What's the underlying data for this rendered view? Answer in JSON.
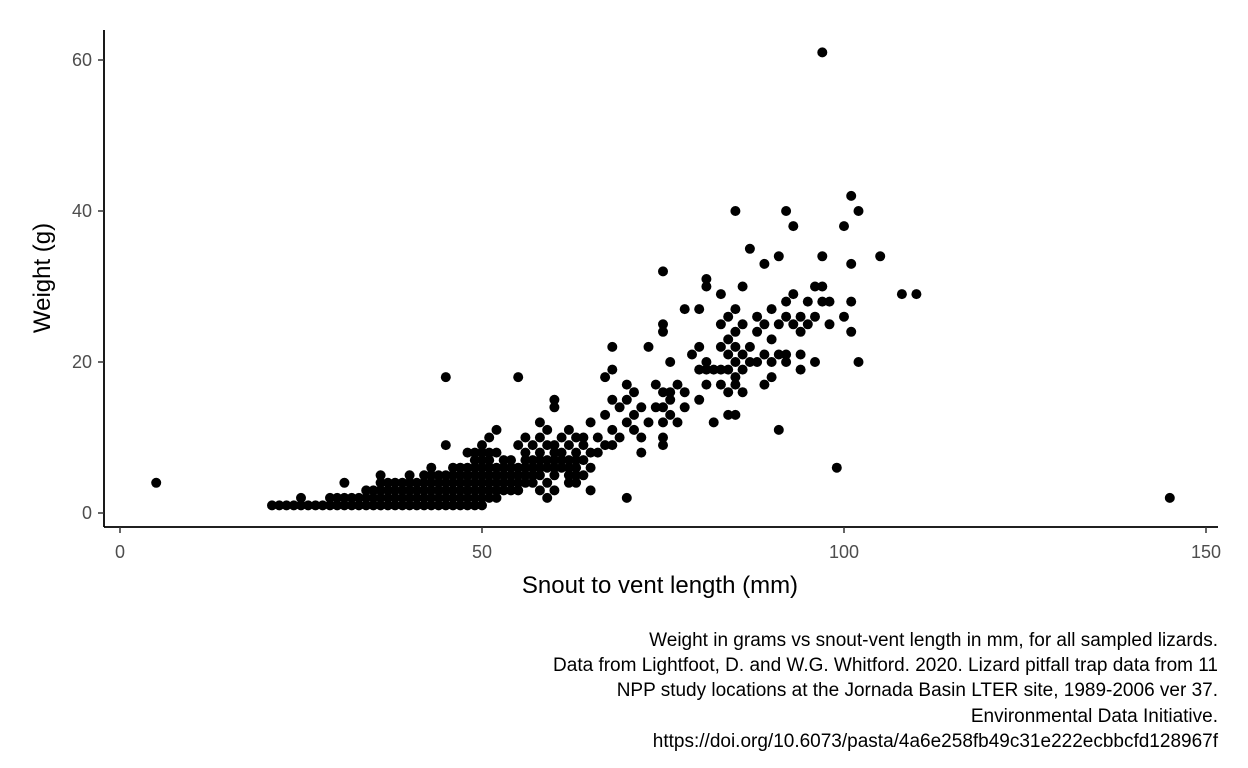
{
  "chart_data": {
    "type": "scatter",
    "xlabel": "Snout to vent length (mm)",
    "ylabel": "Weight (g)",
    "xlim": [
      0,
      150
    ],
    "ylim": [
      0,
      60
    ],
    "x_ticks": [
      0,
      50,
      100,
      150
    ],
    "y_ticks": [
      0,
      20,
      40,
      60
    ],
    "grid": false,
    "point_color": "#000000",
    "caption": [
      "Weight in grams vs snout-vent length in mm, for all sampled lizards.",
      "Data from Lightfoot, D. and W.G. Whitford. 2020. Lizard pitfall trap data from 11",
      "NPP study locations at the Jornada Basin LTER site, 1989-2006 ver 37.",
      "Environmental Data Initiative.",
      "https://doi.org/10.6073/pasta/4a6e258fb49c31e222ecbbcfd128967f"
    ],
    "points": [
      [
        5,
        4
      ],
      [
        145,
        2
      ],
      [
        97,
        61
      ],
      [
        45,
        18
      ],
      [
        55,
        18
      ],
      [
        99,
        6
      ],
      [
        70,
        2
      ],
      [
        91,
        11
      ],
      [
        21,
        1
      ],
      [
        22,
        1
      ],
      [
        23,
        1
      ],
      [
        24,
        1
      ],
      [
        25,
        1
      ],
      [
        25,
        2
      ],
      [
        26,
        1
      ],
      [
        27,
        1
      ],
      [
        28,
        1
      ],
      [
        29,
        1
      ],
      [
        29,
        2
      ],
      [
        30,
        1
      ],
      [
        30,
        2
      ],
      [
        31,
        1
      ],
      [
        31,
        2
      ],
      [
        31,
        4
      ],
      [
        32,
        1
      ],
      [
        32,
        2
      ],
      [
        33,
        1
      ],
      [
        33,
        2
      ],
      [
        34,
        1
      ],
      [
        34,
        2
      ],
      [
        34,
        3
      ],
      [
        35,
        1
      ],
      [
        35,
        2
      ],
      [
        35,
        3
      ],
      [
        36,
        1
      ],
      [
        36,
        2
      ],
      [
        36,
        3
      ],
      [
        36,
        4
      ],
      [
        36,
        5
      ],
      [
        37,
        1
      ],
      [
        37,
        2
      ],
      [
        37,
        3
      ],
      [
        37,
        4
      ],
      [
        38,
        1
      ],
      [
        38,
        2
      ],
      [
        38,
        3
      ],
      [
        38,
        4
      ],
      [
        39,
        1
      ],
      [
        39,
        2
      ],
      [
        39,
        3
      ],
      [
        39,
        4
      ],
      [
        40,
        1
      ],
      [
        40,
        2
      ],
      [
        40,
        3
      ],
      [
        40,
        4
      ],
      [
        40,
        5
      ],
      [
        41,
        1
      ],
      [
        41,
        2
      ],
      [
        41,
        3
      ],
      [
        41,
        4
      ],
      [
        42,
        1
      ],
      [
        42,
        2
      ],
      [
        42,
        3
      ],
      [
        42,
        4
      ],
      [
        42,
        5
      ],
      [
        43,
        1
      ],
      [
        43,
        2
      ],
      [
        43,
        3
      ],
      [
        43,
        4
      ],
      [
        43,
        5
      ],
      [
        43,
        6
      ],
      [
        44,
        1
      ],
      [
        44,
        2
      ],
      [
        44,
        3
      ],
      [
        44,
        4
      ],
      [
        44,
        5
      ],
      [
        45,
        1
      ],
      [
        45,
        2
      ],
      [
        45,
        3
      ],
      [
        45,
        4
      ],
      [
        45,
        5
      ],
      [
        45,
        9
      ],
      [
        46,
        1
      ],
      [
        46,
        2
      ],
      [
        46,
        3
      ],
      [
        46,
        4
      ],
      [
        46,
        5
      ],
      [
        46,
        6
      ],
      [
        47,
        1
      ],
      [
        47,
        2
      ],
      [
        47,
        3
      ],
      [
        47,
        4
      ],
      [
        47,
        5
      ],
      [
        47,
        6
      ],
      [
        48,
        1
      ],
      [
        48,
        2
      ],
      [
        48,
        3
      ],
      [
        48,
        4
      ],
      [
        48,
        5
      ],
      [
        48,
        6
      ],
      [
        48,
        8
      ],
      [
        49,
        1
      ],
      [
        49,
        2
      ],
      [
        49,
        3
      ],
      [
        49,
        4
      ],
      [
        49,
        5
      ],
      [
        49,
        6
      ],
      [
        49,
        7
      ],
      [
        49,
        8
      ],
      [
        50,
        1
      ],
      [
        50,
        2
      ],
      [
        50,
        3
      ],
      [
        50,
        4
      ],
      [
        50,
        5
      ],
      [
        50,
        6
      ],
      [
        50,
        7
      ],
      [
        50,
        8
      ],
      [
        50,
        9
      ],
      [
        51,
        2
      ],
      [
        51,
        3
      ],
      [
        51,
        4
      ],
      [
        51,
        5
      ],
      [
        51,
        6
      ],
      [
        51,
        7
      ],
      [
        51,
        8
      ],
      [
        51,
        10
      ],
      [
        52,
        2
      ],
      [
        52,
        3
      ],
      [
        52,
        4
      ],
      [
        52,
        5
      ],
      [
        52,
        6
      ],
      [
        52,
        8
      ],
      [
        52,
        11
      ],
      [
        53,
        3
      ],
      [
        53,
        4
      ],
      [
        53,
        5
      ],
      [
        53,
        6
      ],
      [
        53,
        7
      ],
      [
        54,
        3
      ],
      [
        54,
        4
      ],
      [
        54,
        5
      ],
      [
        54,
        6
      ],
      [
        54,
        7
      ],
      [
        55,
        3
      ],
      [
        55,
        4
      ],
      [
        55,
        5
      ],
      [
        55,
        6
      ],
      [
        55,
        9
      ],
      [
        56,
        4
      ],
      [
        56,
        5
      ],
      [
        56,
        6
      ],
      [
        56,
        7
      ],
      [
        56,
        8
      ],
      [
        56,
        10
      ],
      [
        57,
        4
      ],
      [
        57,
        5
      ],
      [
        57,
        6
      ],
      [
        57,
        7
      ],
      [
        57,
        9
      ],
      [
        58,
        3
      ],
      [
        58,
        5
      ],
      [
        58,
        6
      ],
      [
        58,
        7
      ],
      [
        58,
        8
      ],
      [
        58,
        10
      ],
      [
        58,
        12
      ],
      [
        59,
        2
      ],
      [
        59,
        4
      ],
      [
        59,
        6
      ],
      [
        59,
        7
      ],
      [
        59,
        9
      ],
      [
        59,
        11
      ],
      [
        60,
        3
      ],
      [
        60,
        5
      ],
      [
        60,
        6
      ],
      [
        60,
        7
      ],
      [
        60,
        8
      ],
      [
        60,
        9
      ],
      [
        60,
        14
      ],
      [
        60,
        15
      ],
      [
        61,
        6
      ],
      [
        61,
        7
      ],
      [
        61,
        8
      ],
      [
        61,
        10
      ],
      [
        62,
        4
      ],
      [
        62,
        5
      ],
      [
        62,
        6
      ],
      [
        62,
        7
      ],
      [
        62,
        9
      ],
      [
        62,
        11
      ],
      [
        63,
        4
      ],
      [
        63,
        5
      ],
      [
        63,
        6
      ],
      [
        63,
        7
      ],
      [
        63,
        8
      ],
      [
        63,
        10
      ],
      [
        64,
        5
      ],
      [
        64,
        7
      ],
      [
        64,
        9
      ],
      [
        64,
        10
      ],
      [
        65,
        3
      ],
      [
        65,
        6
      ],
      [
        65,
        8
      ],
      [
        65,
        12
      ],
      [
        66,
        8
      ],
      [
        66,
        10
      ],
      [
        67,
        9
      ],
      [
        67,
        13
      ],
      [
        67,
        18
      ],
      [
        68,
        9
      ],
      [
        68,
        11
      ],
      [
        68,
        15
      ],
      [
        68,
        19
      ],
      [
        68,
        22
      ],
      [
        69,
        10
      ],
      [
        69,
        14
      ],
      [
        70,
        12
      ],
      [
        70,
        15
      ],
      [
        70,
        17
      ],
      [
        71,
        11
      ],
      [
        71,
        13
      ],
      [
        71,
        16
      ],
      [
        72,
        8
      ],
      [
        72,
        10
      ],
      [
        72,
        14
      ],
      [
        73,
        12
      ],
      [
        73,
        22
      ],
      [
        74,
        14
      ],
      [
        74,
        17
      ],
      [
        75,
        9
      ],
      [
        75,
        10
      ],
      [
        75,
        12
      ],
      [
        75,
        14
      ],
      [
        75,
        16
      ],
      [
        75,
        24
      ],
      [
        75,
        25
      ],
      [
        75,
        32
      ],
      [
        76,
        13
      ],
      [
        76,
        15
      ],
      [
        76,
        16
      ],
      [
        76,
        20
      ],
      [
        77,
        12
      ],
      [
        77,
        17
      ],
      [
        78,
        14
      ],
      [
        78,
        16
      ],
      [
        78,
        27
      ],
      [
        79,
        21
      ],
      [
        80,
        15
      ],
      [
        80,
        19
      ],
      [
        80,
        22
      ],
      [
        80,
        27
      ],
      [
        81,
        17
      ],
      [
        81,
        19
      ],
      [
        81,
        20
      ],
      [
        81,
        30
      ],
      [
        81,
        31
      ],
      [
        82,
        12
      ],
      [
        82,
        19
      ],
      [
        83,
        17
      ],
      [
        83,
        19
      ],
      [
        83,
        22
      ],
      [
        83,
        25
      ],
      [
        83,
        29
      ],
      [
        84,
        13
      ],
      [
        84,
        16
      ],
      [
        84,
        19
      ],
      [
        84,
        21
      ],
      [
        84,
        23
      ],
      [
        84,
        26
      ],
      [
        85,
        13
      ],
      [
        85,
        17
      ],
      [
        85,
        18
      ],
      [
        85,
        20
      ],
      [
        85,
        22
      ],
      [
        85,
        24
      ],
      [
        85,
        27
      ],
      [
        85,
        40
      ],
      [
        86,
        16
      ],
      [
        86,
        19
      ],
      [
        86,
        21
      ],
      [
        86,
        25
      ],
      [
        86,
        30
      ],
      [
        87,
        20
      ],
      [
        87,
        22
      ],
      [
        87,
        35
      ],
      [
        88,
        20
      ],
      [
        88,
        24
      ],
      [
        88,
        26
      ],
      [
        89,
        17
      ],
      [
        89,
        21
      ],
      [
        89,
        25
      ],
      [
        89,
        33
      ],
      [
        90,
        18
      ],
      [
        90,
        20
      ],
      [
        90,
        23
      ],
      [
        90,
        27
      ],
      [
        91,
        21
      ],
      [
        91,
        25
      ],
      [
        91,
        34
      ],
      [
        92,
        20
      ],
      [
        92,
        21
      ],
      [
        92,
        26
      ],
      [
        92,
        28
      ],
      [
        92,
        40
      ],
      [
        93,
        25
      ],
      [
        93,
        29
      ],
      [
        93,
        38
      ],
      [
        94,
        19
      ],
      [
        94,
        21
      ],
      [
        94,
        24
      ],
      [
        94,
        26
      ],
      [
        95,
        25
      ],
      [
        95,
        28
      ],
      [
        96,
        20
      ],
      [
        96,
        26
      ],
      [
        96,
        30
      ],
      [
        97,
        28
      ],
      [
        97,
        30
      ],
      [
        97,
        34
      ],
      [
        98,
        25
      ],
      [
        98,
        28
      ],
      [
        100,
        26
      ],
      [
        100,
        38
      ],
      [
        101,
        24
      ],
      [
        101,
        28
      ],
      [
        101,
        33
      ],
      [
        101,
        42
      ],
      [
        102,
        20
      ],
      [
        102,
        40
      ],
      [
        105,
        34
      ],
      [
        108,
        29
      ],
      [
        110,
        29
      ]
    ]
  }
}
